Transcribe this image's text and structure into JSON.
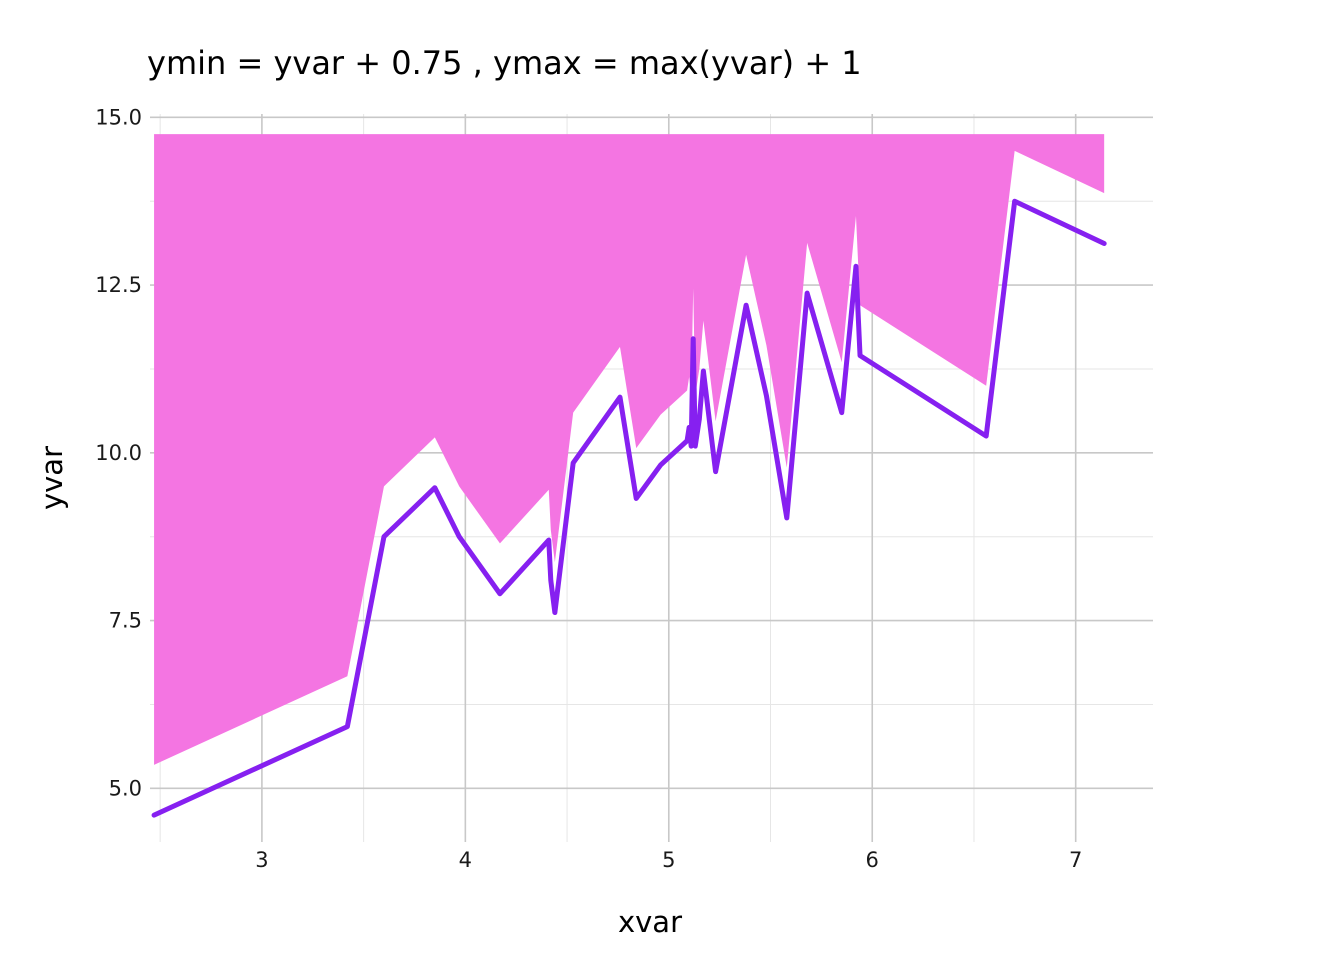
{
  "chart_data": {
    "type": "area",
    "title": "ymin = yvar + 0.75 , ymax = max(yvar) + 1",
    "xlabel": "xvar",
    "ylabel": "yvar",
    "xlim": [
      2.45,
      7.38
    ],
    "ylim": [
      4.2,
      15.05
    ],
    "x_ticks": [
      3,
      4,
      5,
      6,
      7
    ],
    "y_ticks": [
      5.0,
      7.5,
      10.0,
      12.5,
      15.0
    ],
    "x_tick_labels": [
      "3",
      "4",
      "5",
      "6",
      "7"
    ],
    "y_tick_labels": [
      "5.0",
      "7.5",
      "10.0",
      "12.5",
      "15.0"
    ],
    "grid": true,
    "colors": {
      "ribbon": "#f475e2",
      "line": "#8620f0",
      "grid": "#c8c8c8",
      "grid_minor": "#e6e6e6"
    },
    "ribbon": {
      "ymin_offset": 0.75,
      "ymax": 14.75
    },
    "series": [
      {
        "x": [
          2.47,
          3.42,
          3.6,
          3.85,
          3.97,
          4.17,
          4.41,
          4.42,
          4.44,
          4.53,
          4.76,
          4.84,
          4.96,
          5.09,
          5.1,
          5.11,
          5.12,
          5.13,
          5.15,
          5.17,
          5.23,
          5.38,
          5.48,
          5.58,
          5.68,
          5.85,
          5.92,
          5.94,
          6.56,
          6.7,
          7.14
        ],
        "y": [
          4.6,
          5.92,
          8.75,
          9.48,
          8.75,
          7.9,
          8.7,
          8.1,
          7.62,
          9.85,
          10.83,
          9.32,
          9.82,
          10.18,
          10.38,
          10.1,
          11.7,
          10.1,
          10.5,
          11.22,
          9.72,
          12.2,
          10.85,
          9.03,
          12.38,
          10.6,
          12.78,
          11.45,
          10.25,
          13.75,
          13.12
        ]
      }
    ]
  }
}
